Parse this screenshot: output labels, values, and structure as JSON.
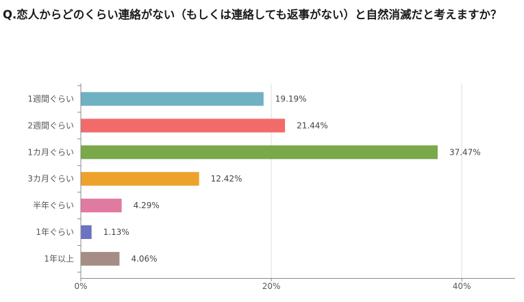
{
  "question": "Q.恋人からどのくらい連絡がない（もしくは連絡しても返事がない）と自然消滅だと考えますか？",
  "chart_data": {
    "type": "bar",
    "orientation": "horizontal",
    "categories": [
      "1週間ぐらい",
      "2週間ぐらい",
      "1カ月ぐらい",
      "3カ月ぐらい",
      "半年ぐらい",
      "1年ぐらい",
      "1年以上"
    ],
    "values": [
      19.19,
      21.44,
      37.47,
      12.42,
      4.29,
      1.13,
      4.06
    ],
    "value_labels": [
      "19.19%",
      "21.44%",
      "37.47%",
      "12.42%",
      "4.29%",
      "1.13%",
      "4.06%"
    ],
    "colors": [
      "#6fb0c3",
      "#f26b6b",
      "#7aa84a",
      "#eda32b",
      "#e07aa0",
      "#6b74c2",
      "#a58d86"
    ],
    "x_ticks": [
      0,
      20,
      40
    ],
    "x_tick_labels": [
      "0%",
      "20%",
      "40%"
    ],
    "xlim": [
      0,
      45.6
    ],
    "grid": true,
    "xlabel": "",
    "ylabel": ""
  }
}
